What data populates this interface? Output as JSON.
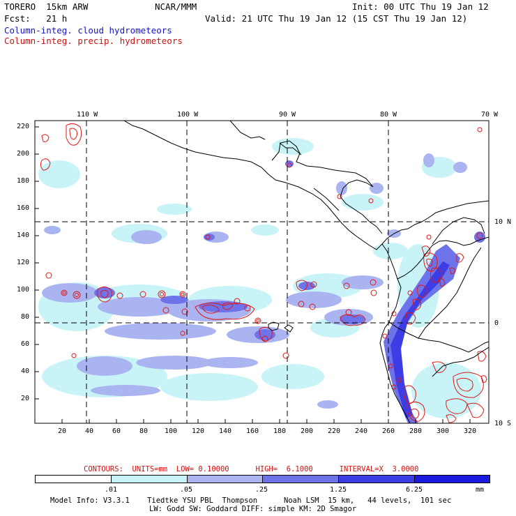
{
  "header": {
    "model": "TORERO  15km ARW",
    "org": "NCAR/MMM",
    "init": "Init: 00 UTC Thu 19 Jan 12",
    "fcst": "Fcst:   21 h",
    "valid": "Valid: 21 UTC Thu 19 Jan 12 (15 CST Thu 19 Jan 12)",
    "field_blue": "Column-integ. cloud hydrometeors",
    "field_red": "Column-integ. precip. hydrometeors"
  },
  "map": {
    "lon_labels": [
      "110 W",
      "100 W",
      "90 W",
      "80 W",
      "70 W"
    ],
    "lat_labels": [
      "10 N",
      "0",
      "10 S"
    ],
    "y_ticks": [
      "220",
      "200",
      "180",
      "160",
      "140",
      "120",
      "100",
      "80",
      "60",
      "40",
      "20"
    ],
    "x_ticks": [
      "20",
      "40",
      "60",
      "80",
      "100",
      "120",
      "140",
      "160",
      "180",
      "200",
      "220",
      "240",
      "260",
      "280",
      "300",
      "320"
    ],
    "colors": {
      "land_line": "#000000",
      "grid": "#000000",
      "precip_contour": "#e01818"
    }
  },
  "contours_text": "CONTOURS:  UNITS=mm  LOW= 0.10000      HIGH=  6.1000      INTERVAL=X  3.0000",
  "colorbar": {
    "labels": [
      ".01",
      ".05",
      ".25",
      "1.25",
      "6.25"
    ],
    "units": "mm",
    "colors": [
      "#ffffff",
      "#c8f4f8",
      "#aab4f0",
      "#6f73ea",
      "#3d3de6",
      "#1a1ae0"
    ]
  },
  "model_info": {
    "line1": "Model Info: V3.3.1    Tiedtke YSU PBL  Thompson      Noah LSM  15 km,   44 levels,  101 sec",
    "line2": "LW: Godd SW: Goddard DIFF: simple KM: 2D Smagor"
  }
}
